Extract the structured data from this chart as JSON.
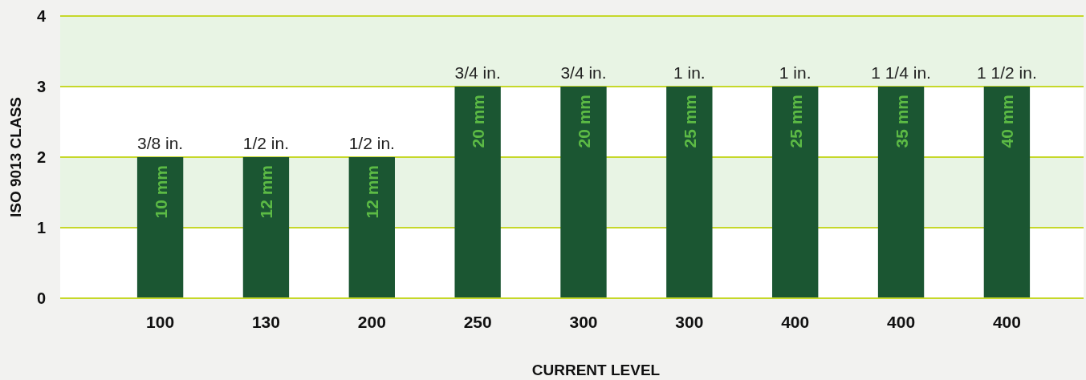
{
  "chart_data": {
    "type": "bar",
    "xlabel": "CURRENT LEVEL",
    "ylabel": "ISO 9013 CLASS",
    "categories": [
      "100",
      "130",
      "200",
      "250",
      "300",
      "300",
      "400",
      "400",
      "400"
    ],
    "values": [
      2,
      2,
      2,
      3,
      3,
      3,
      3,
      3,
      3
    ],
    "color": "#1b5632",
    "annotations": [
      "3/8 in.",
      "1/2 in.",
      "1/2 in.",
      "3/4 in.",
      "3/4 in.",
      "1 in.",
      "1 in.",
      "1 1/4 in.",
      "1 1/2 in.",
      "10 mm",
      "12 mm",
      "12 mm",
      "20 mm",
      "20 mm",
      "25 mm",
      "25 mm",
      "35 mm",
      "40 mm"
    ],
    "ylim": [
      0,
      4
    ],
    "yticks": [
      0,
      1,
      2,
      3,
      4
    ],
    "grid": "y",
    "bands": [
      {
        "axis": "y",
        "from": 1,
        "to": 2,
        "color": "#e8f4e4"
      },
      {
        "axis": "y",
        "from": 3,
        "to": 4,
        "color": "#e8f4e4"
      }
    ]
  }
}
